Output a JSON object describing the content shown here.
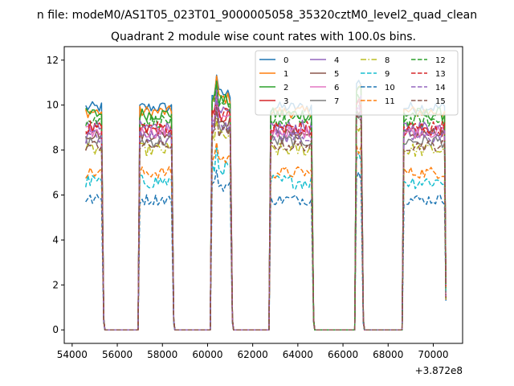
{
  "chart_data": {
    "type": "line",
    "suptitle": "n file: modeM0/AS1T05_023T01_9000005058_35320cztM0_level2_quad_clean",
    "title": "Quadrant 2 module wise count rates with 100.0s bins.",
    "xlabel": "",
    "ylabel": "",
    "offset_text": "+3.872e8",
    "xlim": [
      53650,
      71300
    ],
    "ylim": [
      -0.6,
      12.6
    ],
    "xticks": [
      54000,
      56000,
      58000,
      60000,
      62000,
      64000,
      66000,
      68000,
      70000
    ],
    "xtick_labels": [
      "54000",
      "56000",
      "58000",
      "60000",
      "62000",
      "64000",
      "66000",
      "68000",
      "70000"
    ],
    "yticks": [
      0,
      2,
      4,
      6,
      8,
      10,
      12
    ],
    "ytick_labels": [
      "0",
      "2",
      "4",
      "6",
      "8",
      "10",
      "12"
    ],
    "legend_position": "upper-right",
    "orbit_segments": [
      {
        "start": 54600,
        "end": 55300
      },
      {
        "start": 57000,
        "end": 58400
      },
      {
        "start": 60200,
        "end": 61000
      },
      {
        "start": 62800,
        "end": 64600
      },
      {
        "start": 66600,
        "end": 66800
      },
      {
        "start": 68700,
        "end": 70500
      }
    ],
    "series": [
      {
        "name": "0",
        "level": 9.9,
        "color": "#1f77b4",
        "dash": "solid"
      },
      {
        "name": "1",
        "level": 9.7,
        "color": "#ff7f0e",
        "dash": "solid"
      },
      {
        "name": "2",
        "level": 9.6,
        "color": "#2ca02c",
        "dash": "solid"
      },
      {
        "name": "3",
        "level": 8.9,
        "color": "#d62728",
        "dash": "solid"
      },
      {
        "name": "4",
        "level": 9.0,
        "color": "#9467bd",
        "dash": "solid"
      },
      {
        "name": "5",
        "level": 8.7,
        "color": "#8c564b",
        "dash": "solid"
      },
      {
        "name": "6",
        "level": 8.8,
        "color": "#e377c2",
        "dash": "solid"
      },
      {
        "name": "7",
        "level": 8.4,
        "color": "#7f7f7f",
        "dash": "solid"
      },
      {
        "name": "8",
        "level": 8.0,
        "color": "#bcbd22",
        "dash": "dashdot"
      },
      {
        "name": "9",
        "level": 6.6,
        "color": "#17becf",
        "dash": "dashed"
      },
      {
        "name": "10",
        "level": 5.8,
        "color": "#1f77b4",
        "dash": "dashed"
      },
      {
        "name": "11",
        "level": 7.0,
        "color": "#ff7f0e",
        "dash": "dashed"
      },
      {
        "name": "12",
        "level": 9.3,
        "color": "#2ca02c",
        "dash": "dashed"
      },
      {
        "name": "13",
        "level": 9.0,
        "color": "#d62728",
        "dash": "dashed"
      },
      {
        "name": "14",
        "level": 8.6,
        "color": "#9467bd",
        "dash": "dashed"
      },
      {
        "name": "15",
        "level": 8.2,
        "color": "#8c564b",
        "dash": "dashed"
      }
    ]
  }
}
